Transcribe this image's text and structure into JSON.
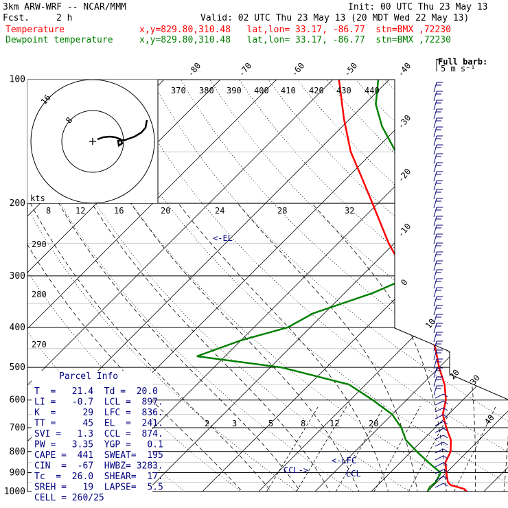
{
  "header": {
    "model": "3km ARW-WRF -- NCAR/MMM",
    "init": "Init: 00 UTC Thu 23 May 13",
    "fcst_label": "Fcst.",
    "fcst_value": "2 h",
    "valid": "Valid: 02 UTC Thu 23 May 13 (20 MDT Wed 22 May 13)",
    "temp_label": "Temperature",
    "temp_loc": "x,y=829.80,310.48   lat,lon= 33.17, -86.77  stn=BMX ,72230",
    "dew_label": "Dewpoint temperature",
    "dew_loc": "x,y=829.80,310.48   lat,lon= 33.17, -86.77  stn=BMX ,72230"
  },
  "colors": {
    "temperature": "#ff0000",
    "dewpoint": "#008000",
    "grid": "#000000",
    "label": "#000080"
  },
  "full_barb_label": "Full barb:",
  "full_barb_value": "5 m s⁻¹",
  "isotherm_labels": [
    "-80",
    "-70",
    "-60",
    "-50",
    "-40",
    "-30",
    "-20",
    "-10",
    "0",
    "10",
    "20",
    "30",
    "40"
  ],
  "pressure_labels": [
    "100",
    "200",
    "300",
    "400",
    "500",
    "600",
    "700",
    "800",
    "900",
    "1000"
  ],
  "theta_labels": [
    "370",
    "380",
    "390",
    "400",
    "410",
    "420",
    "430",
    "440"
  ],
  "mixing_labels": [
    "2",
    "3",
    "5",
    "8",
    "12",
    "20"
  ],
  "hodograph": {
    "rings": [
      "8",
      "16"
    ],
    "kts_label": "kts",
    "speed_labels": [
      "8",
      "12",
      "16",
      "20",
      "24",
      "28",
      "32"
    ],
    "lower_theta_labels": [
      "290",
      "280",
      "270"
    ]
  },
  "annotations": {
    "el": "<-EL",
    "lfc": "<-LFC",
    "ccl": "CCL->",
    "lcl": "LCL"
  },
  "parcel_info": {
    "title": "Parcel Info",
    "rows": [
      "T  =   21.4  Td =  20.0",
      "LI =   -0.7  LCL =  897.",
      "K  =     29  LFC =  836.",
      "TT =     45  EL  =  241.",
      "SVI =   1.3  CCL =  874.",
      "PW =   3.35  YGP =   0.1",
      "CAPE =  441  SWEAT=  195",
      "CIN  =  -67  HWBZ= 3283.",
      "Tc  =  26.0  SHEAR=  17.",
      "SREH =   19  LAPSE=  5.5",
      "CELL = 260/25"
    ]
  },
  "chart_data": {
    "type": "line",
    "title": "",
    "xlabel": "",
    "ylabel": "",
    "y_scale": "log-pressure",
    "ylim": [
      1000,
      100
    ],
    "isotherm_skew": "45 degrees",
    "series": [
      {
        "name": "Temperature",
        "points": [
          [
            1000,
            27
          ],
          [
            985,
            26
          ],
          [
            965,
            23
          ],
          [
            950,
            22
          ],
          [
            925,
            21
          ],
          [
            900,
            20
          ],
          [
            850,
            18
          ],
          [
            800,
            17
          ],
          [
            750,
            15
          ],
          [
            700,
            12
          ],
          [
            650,
            9
          ],
          [
            600,
            7
          ],
          [
            550,
            4
          ],
          [
            500,
            0
          ],
          [
            450,
            -4
          ],
          [
            400,
            -9
          ],
          [
            350,
            -15
          ],
          [
            300,
            -22
          ],
          [
            250,
            -31
          ],
          [
            200,
            -41
          ],
          [
            175,
            -47
          ],
          [
            150,
            -54
          ],
          [
            125,
            -61
          ],
          [
            100,
            -69
          ]
        ]
      },
      {
        "name": "Dewpoint temperature",
        "points": [
          [
            1000,
            20
          ],
          [
            975,
            19.6
          ],
          [
            950,
            19.8
          ],
          [
            925,
            19.4
          ],
          [
            900,
            19
          ],
          [
            875,
            17
          ],
          [
            850,
            15
          ],
          [
            800,
            11
          ],
          [
            750,
            7
          ],
          [
            700,
            4
          ],
          [
            650,
            0
          ],
          [
            600,
            -6
          ],
          [
            550,
            -13
          ],
          [
            500,
            -28
          ],
          [
            470,
            -45
          ],
          [
            430,
            -40
          ],
          [
            400,
            -34
          ],
          [
            370,
            -32
          ],
          [
            330,
            -25
          ],
          [
            300,
            -21
          ],
          [
            280,
            -20
          ],
          [
            250,
            -24
          ],
          [
            215,
            -28
          ],
          [
            195,
            -35
          ],
          [
            175,
            -40
          ],
          [
            150,
            -46
          ],
          [
            130,
            -53
          ],
          [
            115,
            -58
          ],
          [
            100,
            -62
          ]
        ]
      }
    ],
    "wind_barbs": "pressure levels 1000-100 hPa, right margin"
  }
}
